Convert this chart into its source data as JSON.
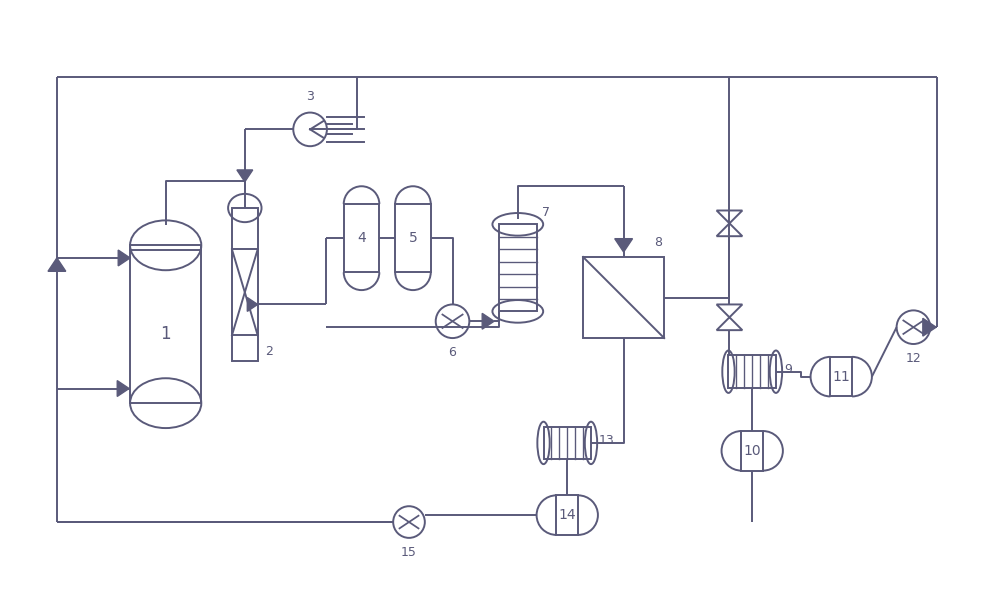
{
  "bg_color": "#ffffff",
  "line_color": "#5a5a7a",
  "line_width": 1.4,
  "fig_width": 10.0,
  "fig_height": 5.99,
  "lc": "#5a5a7a",
  "lw": 1.4
}
